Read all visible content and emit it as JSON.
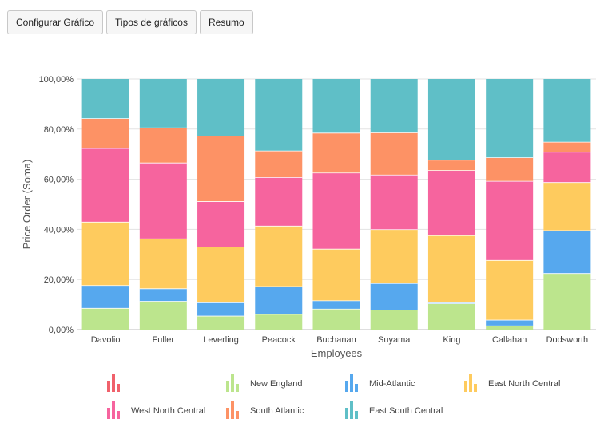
{
  "toolbar": {
    "buttons": [
      {
        "label": "Configurar Gráfico",
        "name": "configure-chart-button"
      },
      {
        "label": "Tipos de gráficos",
        "name": "chart-types-button"
      },
      {
        "label": "Resumo",
        "name": "summary-button"
      }
    ]
  },
  "chart_data": {
    "type": "bar",
    "stacked": "percent",
    "title": "",
    "xlabel": "Employees",
    "ylabel": "Price Order (Soma)",
    "ylim": [
      0,
      100
    ],
    "yticks": [
      "0,00%",
      "20,00%",
      "40,00%",
      "60,00%",
      "80,00%",
      "100,00%"
    ],
    "grid": true,
    "legend_position": "bottom",
    "categories": [
      "Davolio",
      "Fuller",
      "Leverling",
      "Peacock",
      "Buchanan",
      "Suyama",
      "King",
      "Callahan",
      "Dodsworth"
    ],
    "series": [
      {
        "name": "",
        "color": "#f0616b",
        "values": [
          0,
          0,
          0,
          0,
          0,
          0,
          0,
          0,
          0
        ]
      },
      {
        "name": "New England",
        "color": "#bce58d",
        "values": [
          8.5,
          11.3,
          5.4,
          6.1,
          8.2,
          7.8,
          10.3,
          1.5,
          22.4
        ]
      },
      {
        "name": "Mid-Atlantic",
        "color": "#56a8ee",
        "values": [
          9.1,
          5.0,
          5.3,
          11.1,
          3.3,
          10.6,
          0.4,
          2.3,
          17.1
        ]
      },
      {
        "name": "East North Central",
        "color": "#fecb5e",
        "values": [
          25.3,
          19.9,
          22.3,
          24.1,
          20.6,
          21.5,
          26.8,
          23.8,
          19.2
        ]
      },
      {
        "name": "West North Central",
        "color": "#f6649e",
        "values": [
          29.4,
          30.3,
          18.1,
          19.4,
          30.4,
          21.8,
          26.0,
          31.6,
          12.1
        ]
      },
      {
        "name": "South Atlantic",
        "color": "#fd9265",
        "values": [
          11.9,
          14.0,
          26.1,
          10.6,
          15.9,
          16.8,
          4.1,
          9.4,
          4.0
        ]
      },
      {
        "name": "East South Central",
        "color": "#5fbfc7",
        "values": [
          15.8,
          19.5,
          22.8,
          28.7,
          21.6,
          21.5,
          32.4,
          31.4,
          25.2
        ]
      }
    ]
  }
}
